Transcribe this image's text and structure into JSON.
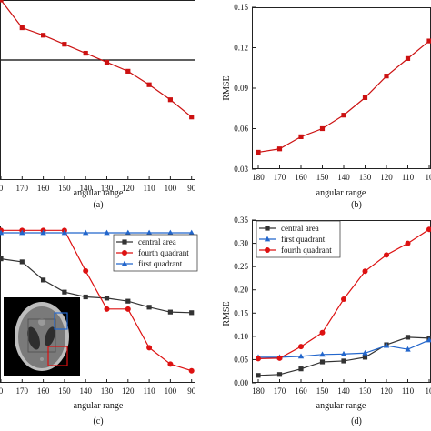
{
  "chart_data": [
    {
      "panel": "(a)",
      "type": "line",
      "xlabel": "angular range",
      "ylabel": "",
      "x_ticks": [
        "0",
        "170",
        "160",
        "150",
        "140",
        "130",
        "120",
        "110",
        "100",
        "90"
      ],
      "reversed_x": true,
      "x": [
        180,
        170,
        160,
        150,
        140,
        130,
        120,
        110,
        100,
        90
      ],
      "series": [
        {
          "name": "",
          "color": "#cc1111",
          "marker": "square",
          "values": [
            0.15,
            0.1315,
            0.1265,
            0.1205,
            0.1145,
            0.1085,
            0.1025,
            0.0935,
            0.0835,
            0.072
          ]
        }
      ],
      "reference_line": {
        "y": 0.11,
        "color": "#000000"
      },
      "ylim": [
        0.03,
        0.15
      ],
      "grid": false
    },
    {
      "panel": "(b)",
      "type": "line",
      "xlabel": "angular range",
      "ylabel": "RMSE",
      "x_ticks": [
        "180",
        "170",
        "160",
        "150",
        "140",
        "130",
        "120",
        "110",
        "10"
      ],
      "y_ticks": [
        "0.03",
        "0.06",
        "0.09",
        "0.12",
        "0.15"
      ],
      "reversed_x": true,
      "x": [
        180,
        170,
        160,
        150,
        140,
        130,
        120,
        110,
        100
      ],
      "series": [
        {
          "name": "",
          "color": "#cc1111",
          "marker": "square",
          "values": [
            0.0425,
            0.045,
            0.054,
            0.06,
            0.07,
            0.083,
            0.099,
            0.112,
            0.125
          ]
        }
      ],
      "ylim": [
        0.03,
        0.15
      ],
      "grid": false
    },
    {
      "panel": "(c)",
      "type": "line",
      "xlabel": "angular range",
      "ylabel": "",
      "x_ticks": [
        "0",
        "170",
        "160",
        "150",
        "140",
        "130",
        "120",
        "110",
        "100",
        "90"
      ],
      "reversed_x": true,
      "x": [
        180,
        170,
        160,
        150,
        140,
        130,
        120,
        110,
        100,
        90
      ],
      "series": [
        {
          "name": "central area",
          "color": "#333333",
          "marker": "square",
          "values": [
            0.205,
            0.2,
            0.17,
            0.15,
            0.142,
            0.14,
            0.135,
            0.125,
            0.117,
            0.116
          ]
        },
        {
          "name": "fourth quadrant",
          "color": "#dd1111",
          "marker": "circle",
          "values": [
            0.252,
            0.252,
            0.252,
            0.252,
            0.185,
            0.122,
            0.122,
            0.058,
            0.031,
            0.02
          ]
        },
        {
          "name": "first quadrant",
          "color": "#2266cc",
          "marker": "triangle",
          "values": [
            0.248,
            0.248,
            0.248,
            0.248,
            0.248,
            0.248,
            0.248,
            0.248,
            0.248,
            0.248
          ]
        }
      ],
      "legend": "right",
      "ylim": [
        0.0,
        0.26
      ],
      "grid": false,
      "inset": "phantom-image"
    },
    {
      "panel": "(d)",
      "type": "line",
      "xlabel": "angular range",
      "ylabel": "RMSE",
      "x_ticks": [
        "180",
        "170",
        "160",
        "150",
        "140",
        "130",
        "120",
        "110",
        "10"
      ],
      "y_ticks": [
        "0.00",
        "0.05",
        "0.10",
        "0.15",
        "0.20",
        "0.25",
        "0.30",
        "0.35"
      ],
      "reversed_x": true,
      "x": [
        180,
        170,
        160,
        150,
        140,
        130,
        120,
        110,
        100
      ],
      "series": [
        {
          "name": "central area",
          "color": "#333333",
          "marker": "square",
          "values": [
            0.016,
            0.018,
            0.03,
            0.045,
            0.047,
            0.055,
            0.082,
            0.098,
            0.096
          ]
        },
        {
          "name": "first quadrant",
          "color": "#2266cc",
          "marker": "triangle",
          "values": [
            0.055,
            0.055,
            0.057,
            0.061,
            0.062,
            0.064,
            0.08,
            0.072,
            0.092
          ]
        },
        {
          "name": "fourth quadrant",
          "color": "#dd1111",
          "marker": "circle",
          "values": [
            0.052,
            0.053,
            0.078,
            0.108,
            0.18,
            0.24,
            0.275,
            0.3,
            0.33
          ]
        }
      ],
      "legend": "top-left",
      "ylim": [
        0.0,
        0.35
      ],
      "grid": false
    }
  ],
  "captions": [
    "(a)",
    "(b)",
    "(c)",
    "(d)"
  ]
}
